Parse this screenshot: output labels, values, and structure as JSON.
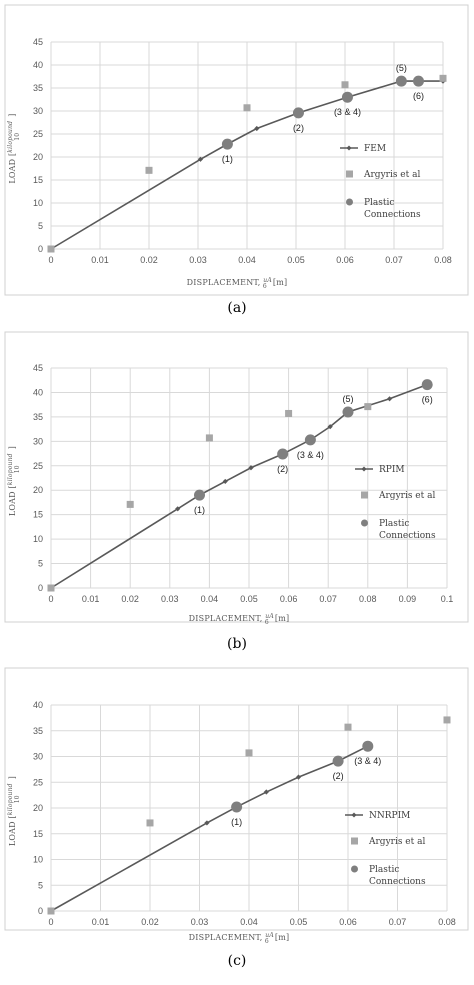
{
  "colors": {
    "fem_line": "#595959",
    "argyris": "#a6a6a6",
    "plastic": "#7f7f7f",
    "grid": "#d9d9d9",
    "frame": "#d0d0d0"
  },
  "chart_data": [
    {
      "type": "line",
      "caption": "(a)",
      "ylabel_main": "LOAD",
      "ylabel_frac_num": "kilopound",
      "ylabel_frac_den": "10",
      "xlabel_main": "DISPLACEMENT,",
      "xlabel_frac_num": "uA",
      "xlabel_frac_den": "6",
      "xlabel_unit": "[m]",
      "xlim": [
        0,
        0.08
      ],
      "ylim": [
        0,
        45
      ],
      "x_ticks": [
        0,
        0.01,
        0.02,
        0.03,
        0.04,
        0.05,
        0.06,
        0.07,
        0.08
      ],
      "x_tick_labels": [
        "0",
        "0.01",
        "0.02",
        "0.03",
        "0.04",
        "0.05",
        "0.06",
        "0.07",
        "0.08"
      ],
      "y_ticks": [
        0,
        5,
        10,
        15,
        20,
        25,
        30,
        35,
        40,
        45
      ],
      "y_tick_labels": [
        "0",
        "5",
        "10",
        "15",
        "20",
        "25",
        "30",
        "35",
        "40",
        "45"
      ],
      "grid": true,
      "legend_position": "right",
      "series": [
        {
          "name": "FEM",
          "kind": "line",
          "x": [
            0,
            0.0305,
            0.036,
            0.042,
            0.0505,
            0.0605,
            0.0715,
            0.075,
            0.08
          ],
          "y": [
            0,
            19.5,
            22.8,
            26.2,
            29.6,
            33.0,
            36.5,
            36.5,
            36.5
          ]
        },
        {
          "name": "Argyris et al",
          "kind": "marker-square",
          "x": [
            0,
            0.02,
            0.04,
            0.06,
            0.08
          ],
          "y": [
            0,
            17.1,
            30.7,
            35.7,
            37.1
          ]
        },
        {
          "name": "Plastic Connections",
          "legend_lines": [
            "Plastic",
            "Connections"
          ],
          "kind": "marker-circle",
          "x": [
            0.036,
            0.0505,
            0.0605,
            0.0715,
            0.075
          ],
          "y": [
            22.8,
            29.6,
            33.0,
            36.5,
            36.5
          ]
        }
      ],
      "annotations": [
        {
          "text": "(1)",
          "x": 0.036,
          "y": 22.8,
          "pos": "below"
        },
        {
          "text": "(2)",
          "x": 0.0505,
          "y": 29.6,
          "pos": "below"
        },
        {
          "text": "(3 & 4)",
          "x": 0.0605,
          "y": 33.0,
          "pos": "below"
        },
        {
          "text": "(5)",
          "x": 0.0715,
          "y": 36.5,
          "pos": "above"
        },
        {
          "text": "(6)",
          "x": 0.075,
          "y": 36.5,
          "pos": "below"
        }
      ]
    },
    {
      "type": "line",
      "caption": "(b)",
      "ylabel_main": "LOAD",
      "ylabel_frac_num": "kilopound",
      "ylabel_frac_den": "10",
      "xlabel_main": "DISPLACEMENT,",
      "xlabel_frac_num": "uA",
      "xlabel_frac_den": "6",
      "xlabel_unit": "[m]",
      "xlim": [
        0,
        0.1
      ],
      "ylim": [
        0,
        45
      ],
      "x_ticks": [
        0,
        0.01,
        0.02,
        0.03,
        0.04,
        0.05,
        0.06,
        0.07,
        0.08,
        0.09,
        0.1
      ],
      "x_tick_labels": [
        "0",
        "0.01",
        "0.02",
        "0.03",
        "0.04",
        "0.05",
        "0.06",
        "0.07",
        "0.08",
        "0.09",
        "0.1"
      ],
      "y_ticks": [
        0,
        5,
        10,
        15,
        20,
        25,
        30,
        35,
        40,
        45
      ],
      "y_tick_labels": [
        "0",
        "5",
        "10",
        "15",
        "20",
        "25",
        "30",
        "35",
        "40",
        "45"
      ],
      "grid": true,
      "legend_position": "right",
      "series": [
        {
          "name": "RPIM",
          "kind": "line",
          "x": [
            0,
            0.032,
            0.0375,
            0.044,
            0.0505,
            0.0585,
            0.0655,
            0.0705,
            0.075,
            0.0855,
            0.095
          ],
          "y": [
            0,
            16.2,
            19.0,
            21.8,
            24.6,
            27.4,
            30.3,
            33.0,
            36.0,
            38.7,
            41.6
          ]
        },
        {
          "name": "Argyris et al",
          "kind": "marker-square",
          "x": [
            0,
            0.02,
            0.04,
            0.06,
            0.08
          ],
          "y": [
            0,
            17.1,
            30.7,
            35.7,
            37.1
          ]
        },
        {
          "name": "Plastic Connections",
          "legend_lines": [
            "Plastic",
            "Connections"
          ],
          "kind": "marker-circle",
          "x": [
            0.0375,
            0.0585,
            0.0655,
            0.075,
            0.095
          ],
          "y": [
            19.0,
            27.4,
            30.3,
            36.0,
            41.6
          ]
        }
      ],
      "annotations": [
        {
          "text": "(1)",
          "x": 0.0375,
          "y": 19.0,
          "pos": "below"
        },
        {
          "text": "(2)",
          "x": 0.0585,
          "y": 27.4,
          "pos": "below"
        },
        {
          "text": "(3 & 4)",
          "x": 0.0655,
          "y": 30.3,
          "pos": "below"
        },
        {
          "text": "(5)",
          "x": 0.075,
          "y": 36.0,
          "pos": "above"
        },
        {
          "text": "(6)",
          "x": 0.095,
          "y": 41.6,
          "pos": "below"
        }
      ]
    },
    {
      "type": "line",
      "caption": "(c)",
      "ylabel_main": "LOAD",
      "ylabel_frac_num": "kilopound",
      "ylabel_frac_den": "10",
      "xlabel_main": "DISPLACEMENT,",
      "xlabel_frac_num": "uA",
      "xlabel_frac_den": "6",
      "xlabel_unit": "[m]",
      "xlim": [
        0,
        0.08
      ],
      "ylim": [
        0,
        40
      ],
      "x_ticks": [
        0,
        0.01,
        0.02,
        0.03,
        0.04,
        0.05,
        0.06,
        0.07,
        0.08
      ],
      "x_tick_labels": [
        "0",
        "0.01",
        "0.02",
        "0.03",
        "0.04",
        "0.05",
        "0.06",
        "0.07",
        "0.08"
      ],
      "y_ticks": [
        0,
        5,
        10,
        15,
        20,
        25,
        30,
        35,
        40
      ],
      "y_tick_labels": [
        "0",
        "5",
        "10",
        "15",
        "20",
        "25",
        "30",
        "35",
        "40"
      ],
      "grid": true,
      "legend_position": "right",
      "series": [
        {
          "name": "NNRPIM",
          "kind": "line",
          "x": [
            0,
            0.0315,
            0.0375,
            0.0435,
            0.05,
            0.058,
            0.064
          ],
          "y": [
            0,
            17.1,
            20.2,
            23.1,
            26.0,
            29.1,
            32.0
          ]
        },
        {
          "name": "Argyris et al",
          "kind": "marker-square",
          "x": [
            0,
            0.02,
            0.04,
            0.06,
            0.08
          ],
          "y": [
            0,
            17.1,
            30.7,
            35.7,
            37.1
          ]
        },
        {
          "name": "Plastic Connections",
          "legend_lines": [
            "Plastic",
            "Connections"
          ],
          "kind": "marker-circle",
          "x": [
            0.0375,
            0.058,
            0.064
          ],
          "y": [
            20.2,
            29.1,
            32.0
          ]
        }
      ],
      "annotations": [
        {
          "text": "(1)",
          "x": 0.0375,
          "y": 20.2,
          "pos": "below"
        },
        {
          "text": "(2)",
          "x": 0.058,
          "y": 29.1,
          "pos": "below"
        },
        {
          "text": "(3 & 4)",
          "x": 0.064,
          "y": 32.0,
          "pos": "below"
        }
      ]
    }
  ]
}
